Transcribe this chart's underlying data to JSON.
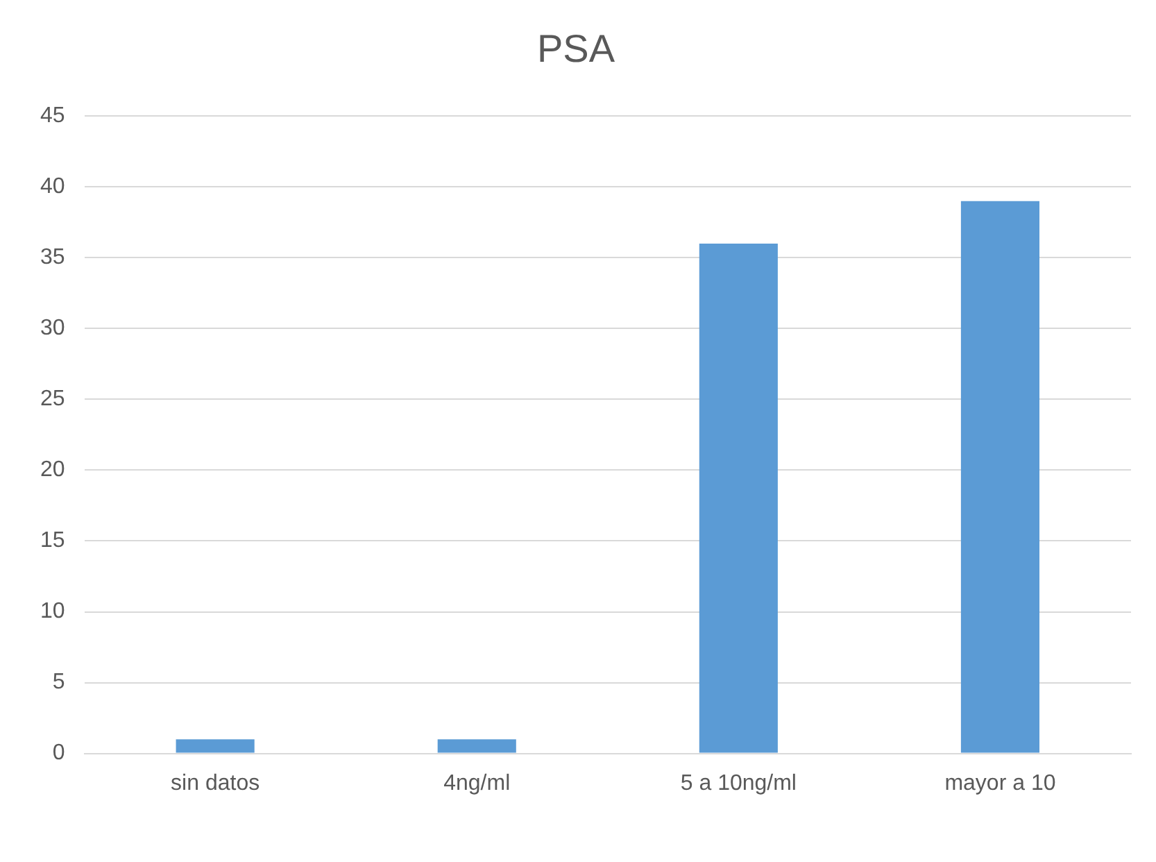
{
  "chart_data": {
    "type": "bar",
    "title": "PSA",
    "categories": [
      "sin datos",
      "4ng/ml",
      "5 a 10ng/ml",
      "mayor a 10"
    ],
    "values": [
      1,
      1,
      36,
      39
    ],
    "color": "#5b9bd5",
    "ylim": [
      0,
      45
    ],
    "yticks": [
      0,
      5,
      10,
      15,
      20,
      25,
      30,
      35,
      40,
      45
    ],
    "grid": "y",
    "legend": false
  }
}
